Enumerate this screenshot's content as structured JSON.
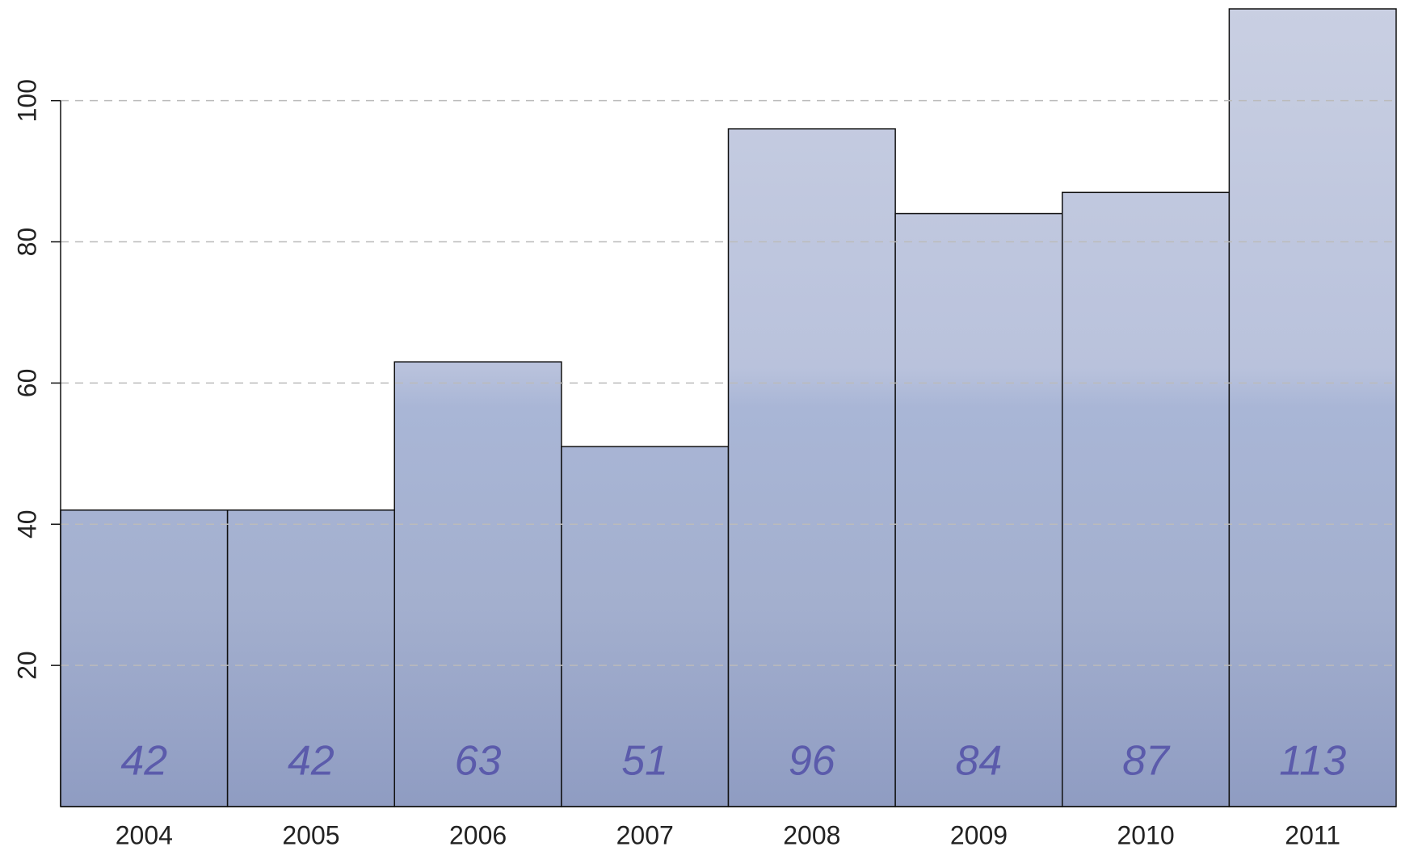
{
  "chart_data": {
    "type": "bar",
    "categories": [
      "2004",
      "2005",
      "2006",
      "2007",
      "2008",
      "2009",
      "2010",
      "2011"
    ],
    "values": [
      42,
      42,
      63,
      51,
      96,
      84,
      87,
      113
    ],
    "color": "#aab4d2",
    "label_color": "#5b5bab",
    "ylim": [
      0,
      113
    ],
    "yticks": [
      20,
      40,
      60,
      80,
      100
    ],
    "grid": true
  }
}
